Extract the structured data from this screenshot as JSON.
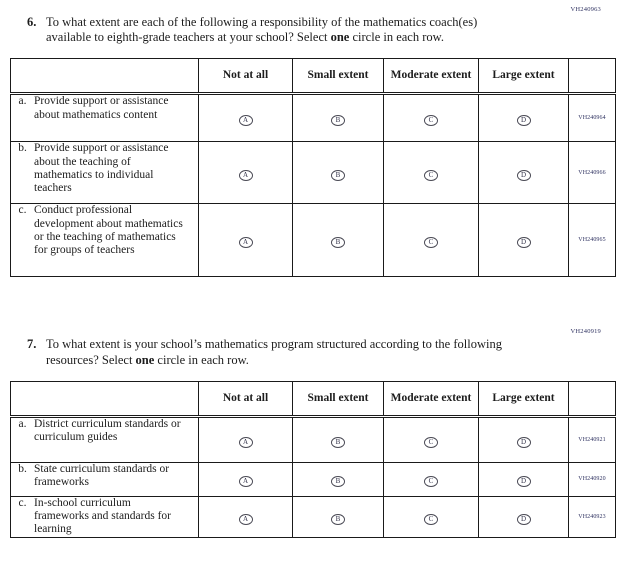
{
  "colors": {
    "text": "#1c1c1c",
    "code_text": "#2e3160",
    "table_border": "#1a1a1a",
    "background": "#ffffff"
  },
  "questions": [
    {
      "number": "6.",
      "code": "VH240963",
      "text": {
        "part1": "To what extent are each of the following a responsibility of the mathematics coach(es) available to eighth-grade teachers at your school? Select ",
        "bold": "one",
        "part2": " circle in each row."
      },
      "table": {
        "headers": [
          "Not at all",
          "Small extent",
          "Moderate extent",
          "Large extent"
        ],
        "rows": [
          {
            "letter": "a.",
            "label": "Provide support or assistance about mathematics content",
            "options": [
              "A",
              "B",
              "C",
              "D"
            ],
            "code": "VH240964"
          },
          {
            "letter": "b.",
            "label": "Provide support or assistance about the teaching of mathematics to individual teachers",
            "options": [
              "A",
              "B",
              "C",
              "D"
            ],
            "code": "VH240966"
          },
          {
            "letter": "c.",
            "label": "Conduct professional development about mathematics or the teaching of mathematics for groups of teachers",
            "options": [
              "A",
              "B",
              "C",
              "D"
            ],
            "code": "VH240965"
          }
        ]
      }
    },
    {
      "number": "7.",
      "code": "VH240919",
      "text": {
        "part1": "To what extent is your school’s mathematics program structured according to the following resources? Select ",
        "bold": "one",
        "part2": " circle in each row."
      },
      "table": {
        "headers": [
          "Not at all",
          "Small extent",
          "Moderate extent",
          "Large extent"
        ],
        "rows": [
          {
            "letter": "a.",
            "label": "District curriculum standards or curriculum guides",
            "options": [
              "A",
              "B",
              "C",
              "D"
            ],
            "code": "VH240921"
          },
          {
            "letter": "b.",
            "label": "State curriculum standards or frameworks",
            "options": [
              "A",
              "B",
              "C",
              "D"
            ],
            "code": "VH240920"
          },
          {
            "letter": "c.",
            "label": "In-school curriculum frameworks and standards for learning",
            "options": [
              "A",
              "B",
              "C",
              "D"
            ],
            "code": "VH240923"
          }
        ]
      }
    }
  ]
}
